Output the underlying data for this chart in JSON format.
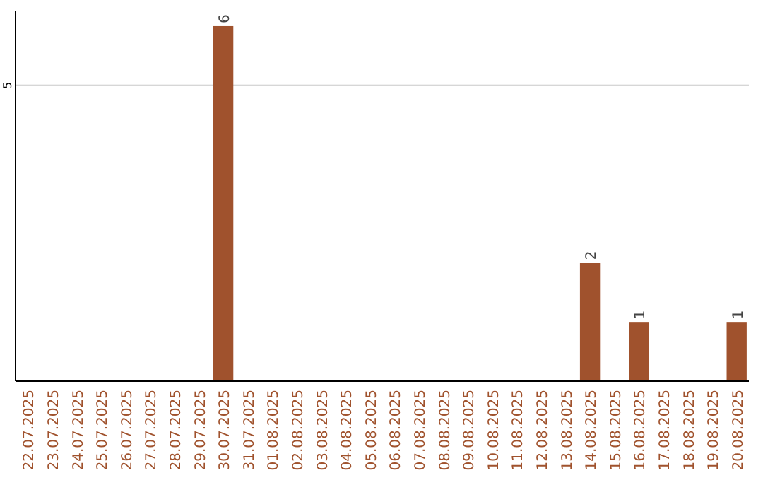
{
  "chart_data": {
    "type": "bar",
    "categories": [
      "22.07.2025",
      "23.07.2025",
      "24.07.2025",
      "25.07.2025",
      "26.07.2025",
      "27.07.2025",
      "28.07.2025",
      "29.07.2025",
      "30.07.2025",
      "31.07.2025",
      "01.08.2025",
      "02.08.2025",
      "03.08.2025",
      "04.08.2025",
      "05.08.2025",
      "06.08.2025",
      "07.08.2025",
      "08.08.2025",
      "09.08.2025",
      "10.08.2025",
      "11.08.2025",
      "12.08.2025",
      "13.08.2025",
      "14.08.2025",
      "15.08.2025",
      "16.08.2025",
      "17.08.2025",
      "18.08.2025",
      "19.08.2025",
      "20.08.2025"
    ],
    "values": [
      0,
      0,
      0,
      0,
      0,
      0,
      0,
      0,
      6,
      0,
      0,
      0,
      0,
      0,
      0,
      0,
      0,
      0,
      0,
      0,
      0,
      0,
      0,
      2,
      0,
      1,
      0,
      0,
      0,
      1
    ],
    "value_labels": [
      null,
      null,
      null,
      null,
      null,
      null,
      null,
      null,
      "6",
      null,
      null,
      null,
      null,
      null,
      null,
      null,
      null,
      null,
      null,
      null,
      null,
      null,
      null,
      "2",
      null,
      "1",
      null,
      null,
      null,
      "1"
    ],
    "color": "#a0522d",
    "ylim": [
      0,
      6.25
    ],
    "yticks": [
      5
    ],
    "grid": "y"
  }
}
